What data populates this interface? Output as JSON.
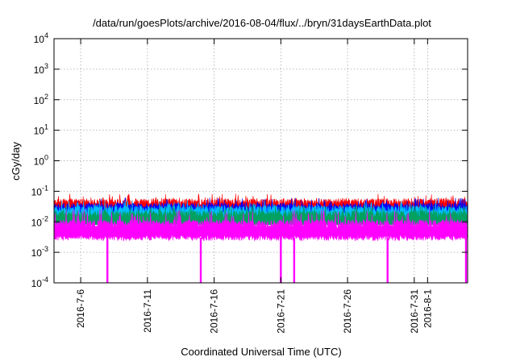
{
  "chart_data": {
    "type": "area",
    "title": "/data/run/goesPlots/archive/2016-08-04/flux/../bryn/31daysEarthData.plot",
    "xlabel": "Coordinated Universal Time (UTC)",
    "ylabel": "cGy/day",
    "yscale": "log",
    "ylim": [
      0.0001,
      10000
    ],
    "y_ticks": [
      {
        "mant": "10",
        "exp": "-4"
      },
      {
        "mant": "10",
        "exp": "-3"
      },
      {
        "mant": "10",
        "exp": "-2"
      },
      {
        "mant": "10",
        "exp": "-1"
      },
      {
        "mant": "10",
        "exp": "0"
      },
      {
        "mant": "10",
        "exp": "1"
      },
      {
        "mant": "10",
        "exp": "2"
      },
      {
        "mant": "10",
        "exp": "3"
      },
      {
        "mant": "10",
        "exp": "4"
      }
    ],
    "xlim": [
      "2016-07-04",
      "2016-08-04"
    ],
    "x_ticks": [
      "2016-7-6",
      "2016-7-11",
      "2016-7-16",
      "2016-7-21",
      "2016-7-26",
      "2016-7-31",
      "2016-8-1"
    ],
    "x_tick_dates": [
      "2016-07-06",
      "2016-07-11",
      "2016-07-16",
      "2016-07-21",
      "2016-07-26",
      "2016-07-31",
      "2016-08-01"
    ],
    "grid": true,
    "series": [
      {
        "color": "#ff0000",
        "typical": 0.045,
        "peak": 0.065
      },
      {
        "color": "#0000ff",
        "typical": 0.032,
        "peak": 0.048
      },
      {
        "color": "#00bfff",
        "typical": 0.026,
        "peak": 0.04
      },
      {
        "color": "#00a060",
        "typical": 0.018,
        "peak": 0.028
      },
      {
        "color": "#ff00ff",
        "typical": 0.009,
        "low": 0.003,
        "peak": 0.02
      }
    ],
    "dropouts": [
      "2016-07-08",
      "2016-07-15",
      "2016-07-21",
      "2016-07-22",
      "2016-07-29",
      "2016-08-04"
    ]
  }
}
